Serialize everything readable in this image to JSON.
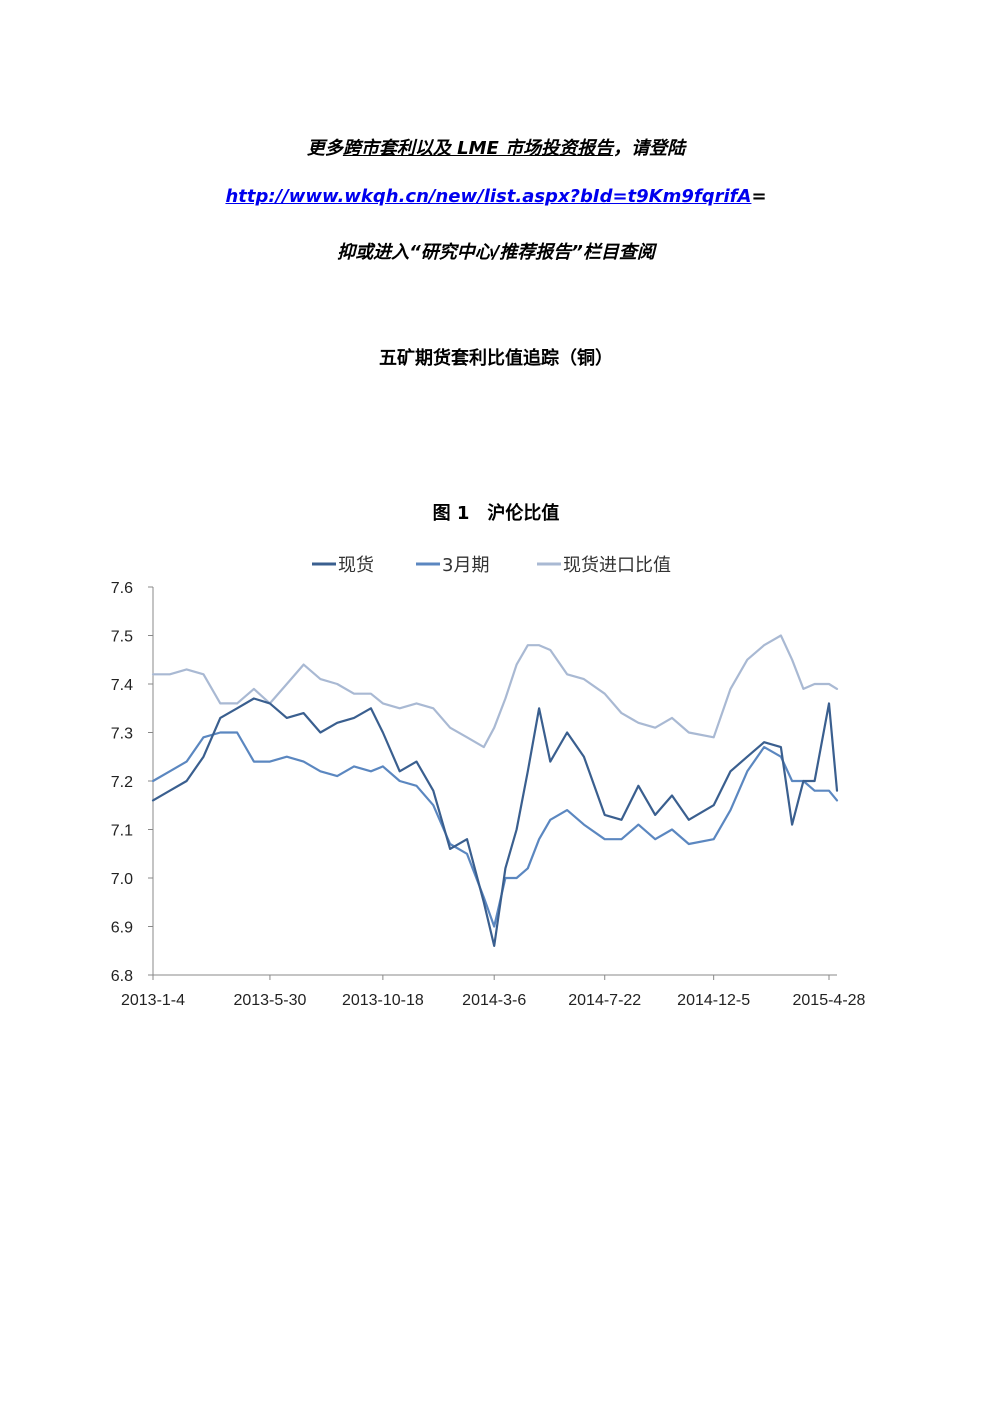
{
  "header": {
    "line1_pre": "更多",
    "line1_link": "跨市套利以及 LME 市场投资报告",
    "line1_post": "，请登陆",
    "url": "http://www.wkqh.cn/new/list.aspx?bId=t9Km9fqrifA",
    "url_suffix": "=",
    "line3": "抑或进入“研究中心/推荐报告”栏目查阅"
  },
  "doc_title": "五矿期货套利比值追踪（铜）",
  "figure_title": "图 1　沪伦比值",
  "colors": {
    "spot": "#3a5f8f",
    "m3": "#5b87c0",
    "import": "#a9b9d3",
    "axis": "#888888"
  },
  "chart_data": {
    "type": "line",
    "x_tick_labels": [
      "2013-1-4",
      "2013-5-30",
      "2013-10-18",
      "2014-3-6",
      "2014-7-22",
      "2014-12-5",
      "2015-4-28"
    ],
    "x_range": [
      "2013-01-04",
      "2015-05-08"
    ],
    "ylim": [
      6.8,
      7.6
    ],
    "y_ticks": [
      "6.8",
      "6.9",
      "7.0",
      "7.1",
      "7.2",
      "7.3",
      "7.4",
      "7.5",
      "7.6"
    ],
    "legend_position": "top",
    "grid": false,
    "series": [
      {
        "name": "现货",
        "points": [
          [
            "2013-01-04",
            7.16
          ],
          [
            "2013-01-25",
            7.18
          ],
          [
            "2013-02-15",
            7.2
          ],
          [
            "2013-03-08",
            7.25
          ],
          [
            "2013-03-29",
            7.33
          ],
          [
            "2013-04-19",
            7.35
          ],
          [
            "2013-05-10",
            7.37
          ],
          [
            "2013-05-30",
            7.36
          ],
          [
            "2013-06-20",
            7.33
          ],
          [
            "2013-07-11",
            7.34
          ],
          [
            "2013-08-01",
            7.3
          ],
          [
            "2013-08-22",
            7.32
          ],
          [
            "2013-09-12",
            7.33
          ],
          [
            "2013-10-03",
            7.35
          ],
          [
            "2013-10-18",
            7.3
          ],
          [
            "2013-11-08",
            7.22
          ],
          [
            "2013-11-29",
            7.24
          ],
          [
            "2013-12-20",
            7.18
          ],
          [
            "2014-01-10",
            7.06
          ],
          [
            "2014-01-31",
            7.08
          ],
          [
            "2014-02-21",
            6.95
          ],
          [
            "2014-03-06",
            6.86
          ],
          [
            "2014-03-20",
            7.02
          ],
          [
            "2014-04-03",
            7.1
          ],
          [
            "2014-04-17",
            7.22
          ],
          [
            "2014-05-01",
            7.35
          ],
          [
            "2014-05-15",
            7.24
          ],
          [
            "2014-06-05",
            7.3
          ],
          [
            "2014-06-26",
            7.25
          ],
          [
            "2014-07-22",
            7.13
          ],
          [
            "2014-08-12",
            7.12
          ],
          [
            "2014-09-02",
            7.19
          ],
          [
            "2014-09-23",
            7.13
          ],
          [
            "2014-10-14",
            7.17
          ],
          [
            "2014-11-04",
            7.12
          ],
          [
            "2014-12-05",
            7.15
          ],
          [
            "2014-12-26",
            7.22
          ],
          [
            "2015-01-16",
            7.25
          ],
          [
            "2015-02-06",
            7.28
          ],
          [
            "2015-02-27",
            7.27
          ],
          [
            "2015-03-13",
            7.11
          ],
          [
            "2015-03-27",
            7.2
          ],
          [
            "2015-04-10",
            7.2
          ],
          [
            "2015-04-28",
            7.36
          ],
          [
            "2015-05-08",
            7.18
          ]
        ]
      },
      {
        "name": "3月期",
        "points": [
          [
            "2013-01-04",
            7.2
          ],
          [
            "2013-01-25",
            7.22
          ],
          [
            "2013-02-15",
            7.24
          ],
          [
            "2013-03-08",
            7.29
          ],
          [
            "2013-03-29",
            7.3
          ],
          [
            "2013-04-19",
            7.3
          ],
          [
            "2013-05-10",
            7.24
          ],
          [
            "2013-05-30",
            7.24
          ],
          [
            "2013-06-20",
            7.25
          ],
          [
            "2013-07-11",
            7.24
          ],
          [
            "2013-08-01",
            7.22
          ],
          [
            "2013-08-22",
            7.21
          ],
          [
            "2013-09-12",
            7.23
          ],
          [
            "2013-10-03",
            7.22
          ],
          [
            "2013-10-18",
            7.23
          ],
          [
            "2013-11-08",
            7.2
          ],
          [
            "2013-11-29",
            7.19
          ],
          [
            "2013-12-20",
            7.15
          ],
          [
            "2014-01-10",
            7.07
          ],
          [
            "2014-01-31",
            7.05
          ],
          [
            "2014-02-21",
            6.96
          ],
          [
            "2014-03-06",
            6.9
          ],
          [
            "2014-03-20",
            7.0
          ],
          [
            "2014-04-03",
            7.0
          ],
          [
            "2014-04-17",
            7.02
          ],
          [
            "2014-05-01",
            7.08
          ],
          [
            "2014-05-15",
            7.12
          ],
          [
            "2014-06-05",
            7.14
          ],
          [
            "2014-06-26",
            7.11
          ],
          [
            "2014-07-22",
            7.08
          ],
          [
            "2014-08-12",
            7.08
          ],
          [
            "2014-09-02",
            7.11
          ],
          [
            "2014-09-23",
            7.08
          ],
          [
            "2014-10-14",
            7.1
          ],
          [
            "2014-11-04",
            7.07
          ],
          [
            "2014-12-05",
            7.08
          ],
          [
            "2014-12-26",
            7.14
          ],
          [
            "2015-01-16",
            7.22
          ],
          [
            "2015-02-06",
            7.27
          ],
          [
            "2015-02-27",
            7.25
          ],
          [
            "2015-03-13",
            7.2
          ],
          [
            "2015-03-27",
            7.2
          ],
          [
            "2015-04-10",
            7.18
          ],
          [
            "2015-04-28",
            7.18
          ],
          [
            "2015-05-08",
            7.16
          ]
        ]
      },
      {
        "name": "现货进口比值",
        "points": [
          [
            "2013-01-04",
            7.42
          ],
          [
            "2013-01-25",
            7.42
          ],
          [
            "2013-02-15",
            7.43
          ],
          [
            "2013-03-08",
            7.42
          ],
          [
            "2013-03-29",
            7.36
          ],
          [
            "2013-04-19",
            7.36
          ],
          [
            "2013-05-10",
            7.39
          ],
          [
            "2013-05-30",
            7.36
          ],
          [
            "2013-06-20",
            7.4
          ],
          [
            "2013-07-11",
            7.44
          ],
          [
            "2013-08-01",
            7.41
          ],
          [
            "2013-08-22",
            7.4
          ],
          [
            "2013-09-12",
            7.38
          ],
          [
            "2013-10-03",
            7.38
          ],
          [
            "2013-10-18",
            7.36
          ],
          [
            "2013-11-08",
            7.35
          ],
          [
            "2013-11-29",
            7.36
          ],
          [
            "2013-12-20",
            7.35
          ],
          [
            "2014-01-10",
            7.31
          ],
          [
            "2014-01-31",
            7.29
          ],
          [
            "2014-02-21",
            7.27
          ],
          [
            "2014-03-06",
            7.31
          ],
          [
            "2014-03-20",
            7.37
          ],
          [
            "2014-04-03",
            7.44
          ],
          [
            "2014-04-17",
            7.48
          ],
          [
            "2014-05-01",
            7.48
          ],
          [
            "2014-05-15",
            7.47
          ],
          [
            "2014-06-05",
            7.42
          ],
          [
            "2014-06-26",
            7.41
          ],
          [
            "2014-07-22",
            7.38
          ],
          [
            "2014-08-12",
            7.34
          ],
          [
            "2014-09-02",
            7.32
          ],
          [
            "2014-09-23",
            7.31
          ],
          [
            "2014-10-14",
            7.33
          ],
          [
            "2014-11-04",
            7.3
          ],
          [
            "2014-12-05",
            7.29
          ],
          [
            "2014-12-26",
            7.39
          ],
          [
            "2015-01-16",
            7.45
          ],
          [
            "2015-02-06",
            7.48
          ],
          [
            "2015-02-27",
            7.5
          ],
          [
            "2015-03-13",
            7.45
          ],
          [
            "2015-03-27",
            7.39
          ],
          [
            "2015-04-10",
            7.4
          ],
          [
            "2015-04-28",
            7.4
          ],
          [
            "2015-05-08",
            7.39
          ]
        ]
      }
    ]
  }
}
